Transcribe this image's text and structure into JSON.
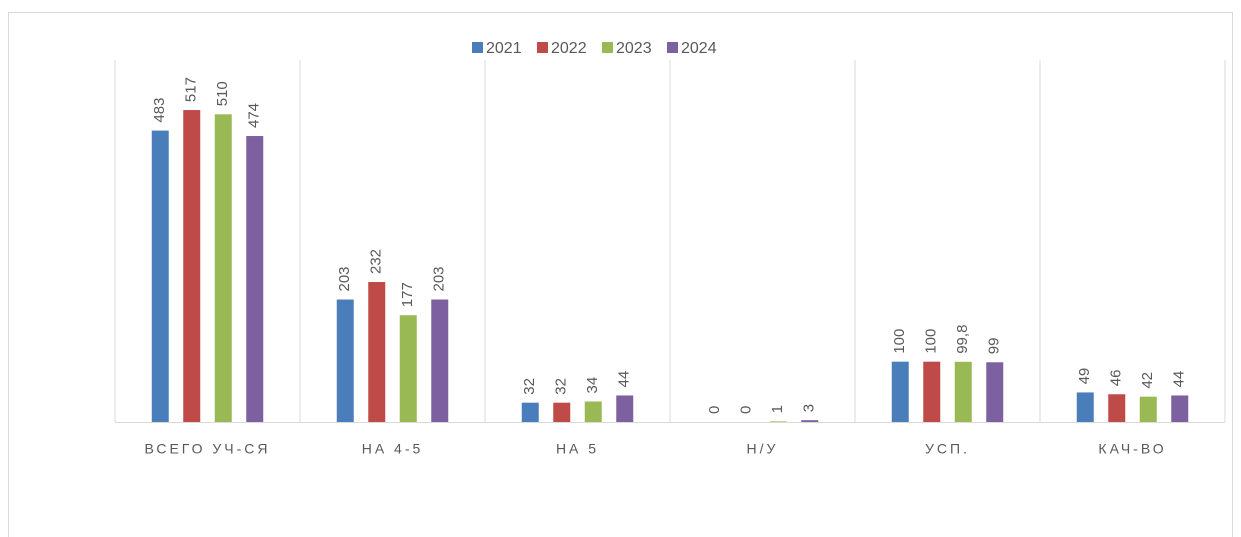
{
  "chart_data": {
    "type": "bar",
    "categories": [
      "ВСЕГО УЧ-СЯ",
      "НА 4-5",
      "НА 5",
      "Н/У",
      "УСП.",
      "КАЧ-ВО"
    ],
    "series": [
      {
        "name": "2021",
        "color": "#4a7ebb",
        "values": [
          483,
          203,
          32,
          0,
          100,
          49
        ]
      },
      {
        "name": "2022",
        "color": "#be4b48",
        "values": [
          517,
          232,
          32,
          0,
          100,
          46
        ]
      },
      {
        "name": "2023",
        "color": "#98b954",
        "values": [
          510,
          177,
          34,
          1,
          99.8,
          42
        ],
        "value_labels": [
          "510",
          "177",
          "34",
          "1",
          "99,8",
          "42"
        ]
      },
      {
        "name": "2024",
        "color": "#7d60a0",
        "values": [
          474,
          203,
          44,
          3,
          99,
          44
        ]
      }
    ],
    "ylim": [
      0,
      600
    ],
    "legend": "top",
    "grid": false
  }
}
